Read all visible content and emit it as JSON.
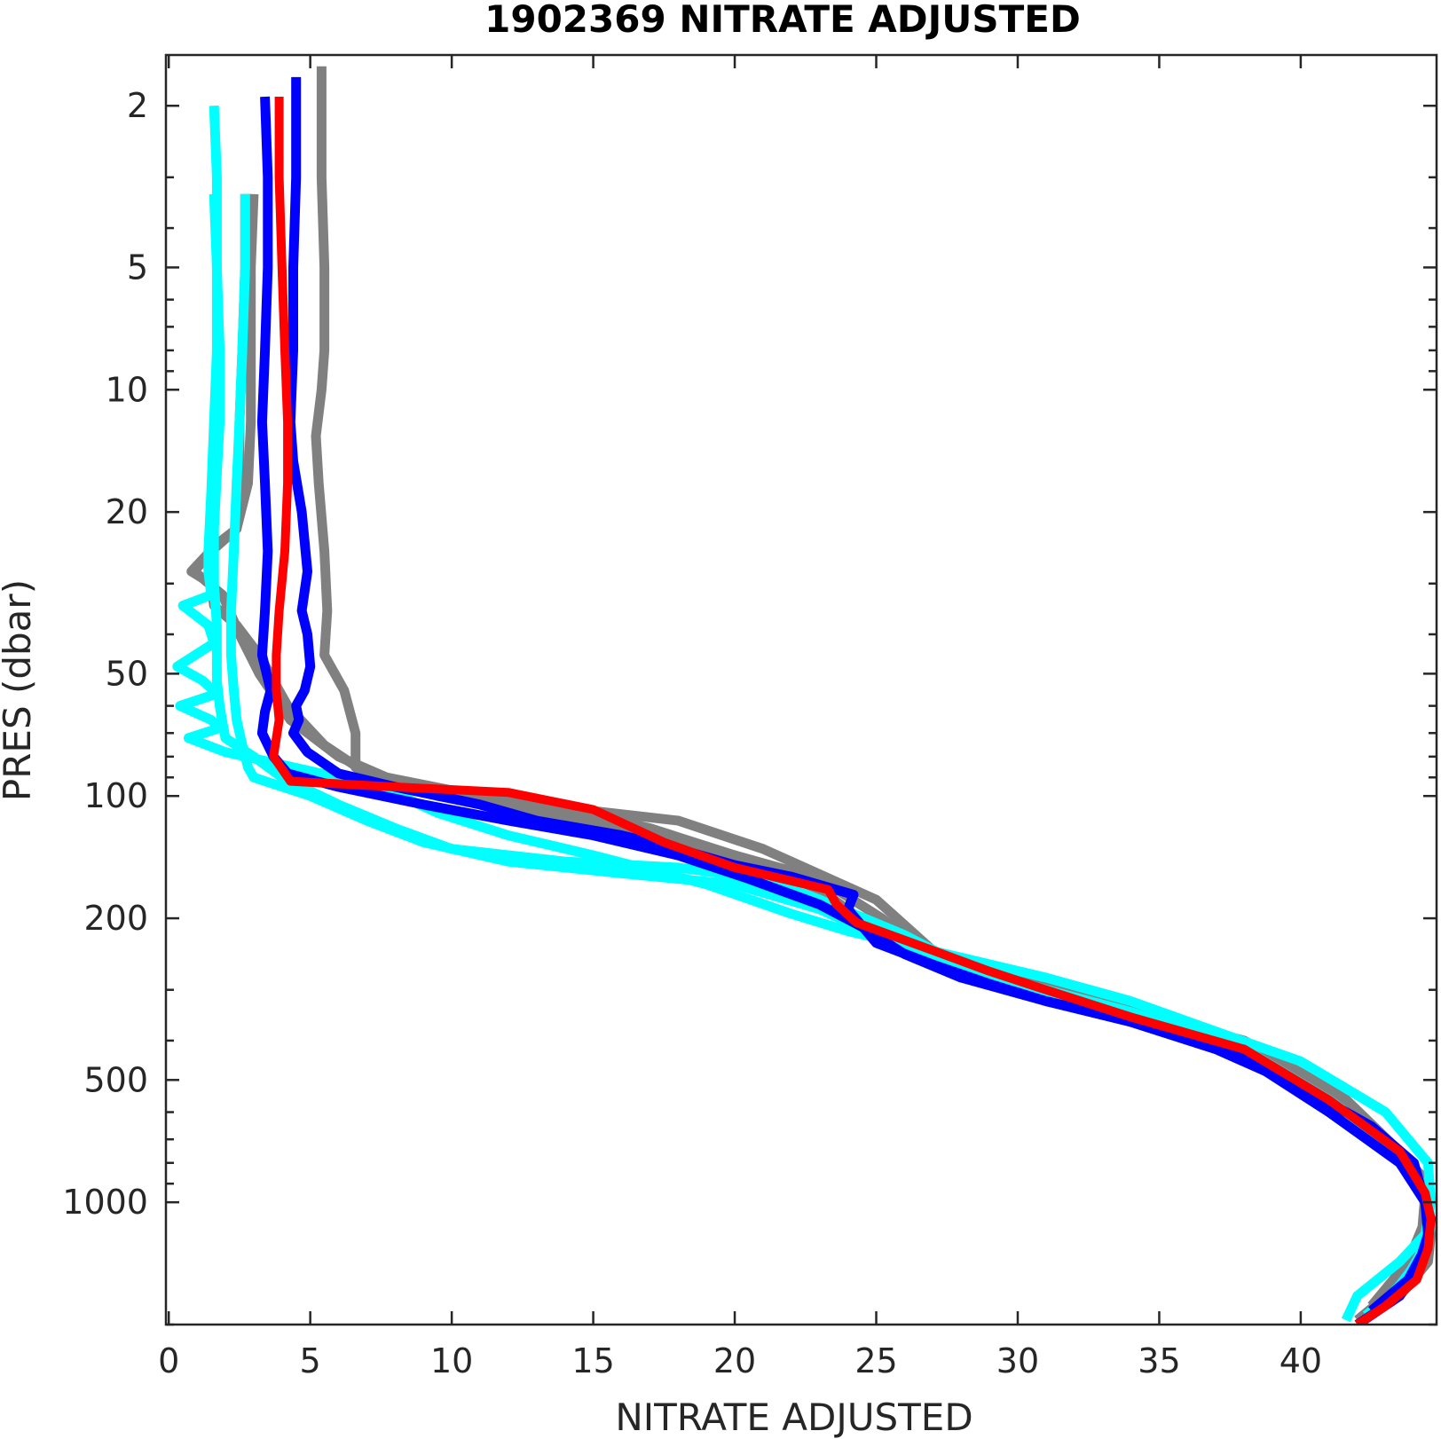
{
  "chart_data": {
    "type": "line",
    "title": "1902369  NITRATE ADJUSTED",
    "xlabel": "NITRATE ADJUSTED",
    "ylabel": "PRES (dbar)",
    "x_ticks": [
      0,
      5,
      10,
      15,
      20,
      25,
      30,
      35,
      40
    ],
    "y_ticks": [
      2,
      5,
      10,
      20,
      50,
      100,
      200,
      500,
      1000
    ],
    "xlim": [
      -0.1,
      44.8
    ],
    "ylim": [
      1.5,
      2000
    ],
    "y_scale": "log",
    "y_reversed": true,
    "grid": false,
    "series": [
      {
        "color": "#808080",
        "x": [
          5.4,
          5.4,
          5.5,
          5.5,
          5.4,
          5.2,
          5.3,
          5.5,
          5.6,
          5.5,
          6.2,
          6.6,
          6.6,
          7.4,
          10,
          13,
          18,
          21,
          25,
          27,
          29,
          32,
          35,
          37,
          40,
          43,
          44.2,
          44.5,
          44.6,
          44.5,
          43.5,
          42
        ],
        "y": [
          1.6,
          3,
          5,
          8,
          10,
          13,
          17,
          25,
          35,
          45,
          55,
          70,
          85,
          92,
          100,
          105,
          115,
          135,
          180,
          240,
          270,
          300,
          340,
          390,
          480,
          700,
          850,
          1000,
          1200,
          1400,
          1700,
          2000
        ]
      },
      {
        "color": "#808080",
        "x": [
          2.7,
          2.7,
          2.6,
          2.5,
          2.5,
          2.4,
          1.7,
          0.8,
          1.5,
          1.6,
          2.4,
          3.2,
          4.2,
          5.5,
          7,
          9.5,
          13,
          17,
          20,
          23,
          25.2,
          27,
          30,
          34,
          38,
          41.5,
          43.5,
          44.3,
          44.5,
          44.2,
          43.5,
          42
        ],
        "y": [
          3.3,
          5,
          8,
          12,
          17,
          22,
          24,
          28,
          30,
          34,
          38,
          45,
          60,
          75,
          88,
          100,
          110,
          125,
          140,
          160,
          200,
          250,
          300,
          350,
          420,
          600,
          800,
          950,
          1100,
          1300,
          1600,
          1950
        ]
      },
      {
        "color": "#808080",
        "x": [
          3,
          2.9,
          2.9,
          2.9,
          2.8,
          2.4,
          1.5,
          0.9,
          1.9,
          2.5,
          3.2,
          4.3,
          6,
          7.7,
          11,
          14,
          17,
          20,
          23,
          26,
          30,
          34,
          38,
          41.5,
          43.5,
          44.4,
          44.3,
          43.8,
          42.5
        ],
        "y": [
          3.3,
          5,
          8,
          12,
          17,
          22,
          25,
          28,
          32,
          40,
          50,
          65,
          80,
          90,
          100,
          108,
          120,
          140,
          170,
          240,
          290,
          340,
          400,
          550,
          750,
          950,
          1150,
          1400,
          1800
        ]
      },
      {
        "color": "#00ffff",
        "x": [
          1.6,
          1.7,
          1.7,
          1.7,
          1.6,
          1.5,
          1.4,
          1.4,
          1.5,
          0.5,
          1.4,
          1.6,
          0.3,
          1.2,
          1.7,
          0.4,
          1.5,
          1.8,
          0.7,
          2,
          7.5,
          9.5,
          12,
          15,
          19,
          22,
          24,
          28,
          31,
          34,
          37,
          40,
          43,
          44.5,
          44.6,
          44.4,
          43.5,
          42,
          41.6
        ],
        "y": [
          2,
          3,
          5,
          8,
          12,
          18,
          25,
          28,
          32,
          34,
          38,
          42,
          48,
          52,
          56,
          60,
          65,
          68,
          72,
          78,
          95,
          110,
          125,
          140,
          165,
          195,
          215,
          250,
          280,
          320,
          380,
          450,
          600,
          800,
          1000,
          1200,
          1400,
          1700,
          1950
        ]
      },
      {
        "color": "#00ffff",
        "x": [
          1.6,
          1.7,
          1.8,
          1.8,
          1.7,
          1.6,
          1.6,
          1.7,
          1.7,
          1.7,
          1.8,
          1.9,
          2,
          3,
          4,
          6,
          8,
          10,
          14,
          18,
          21,
          23,
          26,
          28,
          31,
          34,
          38,
          41,
          43.5,
          44.5,
          44.6,
          44.3,
          43.5,
          42.5
        ],
        "y": [
          3.3,
          5,
          8,
          12,
          16,
          22,
          30,
          38,
          45,
          52,
          60,
          66,
          72,
          80,
          90,
          105,
          120,
          135,
          145,
          150,
          160,
          180,
          220,
          260,
          300,
          340,
          420,
          560,
          750,
          950,
          1150,
          1350,
          1600,
          1900
        ]
      },
      {
        "color": "#00ffff",
        "x": [
          2.7,
          2.7,
          2.6,
          2.5,
          2.4,
          2.3,
          2.2,
          2.2,
          2.3,
          2.4,
          2.6,
          2.8,
          3,
          5,
          7,
          9,
          12,
          16,
          20,
          23,
          25,
          27.5,
          30,
          34,
          38,
          41,
          43.5,
          44.4,
          44.5,
          44.2,
          43.6,
          42.3
        ],
        "y": [
          3.3,
          5,
          8,
          12,
          17,
          25,
          35,
          45,
          55,
          65,
          75,
          85,
          90,
          100,
          115,
          130,
          145,
          155,
          165,
          190,
          220,
          260,
          300,
          350,
          420,
          560,
          750,
          950,
          1150,
          1350,
          1600,
          1900
        ]
      },
      {
        "color": "#0000ff",
        "x": [
          3.4,
          3.5,
          3.5,
          3.4,
          3.3,
          3.4,
          3.5,
          3.4,
          3.3,
          3.6,
          3.4,
          3.3,
          3.7,
          4.2,
          6,
          9,
          12,
          15,
          18,
          20.5,
          23,
          24.5,
          26,
          28,
          31,
          35,
          38,
          41,
          43.5,
          44.4,
          44.5,
          44.2,
          43.5,
          42
        ],
        "y": [
          1.9,
          3,
          5,
          8,
          12,
          17,
          25,
          35,
          45,
          55,
          62,
          70,
          80,
          88,
          95,
          105,
          115,
          125,
          140,
          160,
          185,
          210,
          245,
          280,
          320,
          370,
          440,
          600,
          800,
          1000,
          1200,
          1400,
          1700,
          2000
        ]
      },
      {
        "color": "#0000ff",
        "x": [
          4.5,
          4.5,
          4.4,
          4.4,
          4.3,
          4.4,
          4.7,
          4.9,
          4.7,
          4.9,
          5,
          4.8,
          4.5,
          4.6,
          4.4,
          4.9,
          6,
          8,
          11,
          13,
          16,
          18,
          20,
          22,
          24.2,
          24,
          25,
          27,
          29,
          31,
          34,
          37,
          40,
          42.5,
          44,
          44.3,
          44.6,
          44.4,
          43.8,
          42.5
        ],
        "y": [
          1.7,
          3,
          5,
          8,
          12,
          15,
          20,
          28,
          35,
          40,
          48,
          55,
          60,
          65,
          70,
          78,
          88,
          95,
          105,
          115,
          125,
          135,
          148,
          158,
          175,
          190,
          230,
          260,
          290,
          320,
          360,
          420,
          520,
          650,
          800,
          950,
          1100,
          1300,
          1550,
          1850
        ]
      },
      {
        "color": "#ff0000",
        "x": [
          3.9,
          3.9,
          4,
          4.1,
          4.2,
          4.2,
          4.1,
          3.9,
          3.8,
          3.8,
          3.9,
          3.7,
          4.3,
          8,
          12,
          15,
          17.5,
          20,
          23.3,
          23.6,
          24.3,
          27,
          29,
          31,
          34,
          38,
          41,
          43.5,
          44.4,
          44.6,
          44.5,
          44.1,
          43,
          42
        ],
        "y": [
          1.9,
          3,
          5,
          8,
          12,
          17,
          25,
          35,
          45,
          55,
          65,
          80,
          92,
          95,
          98,
          108,
          130,
          150,
          170,
          185,
          205,
          240,
          270,
          300,
          350,
          420,
          560,
          750,
          950,
          1100,
          1300,
          1550,
          1800,
          2000
        ]
      }
    ]
  }
}
